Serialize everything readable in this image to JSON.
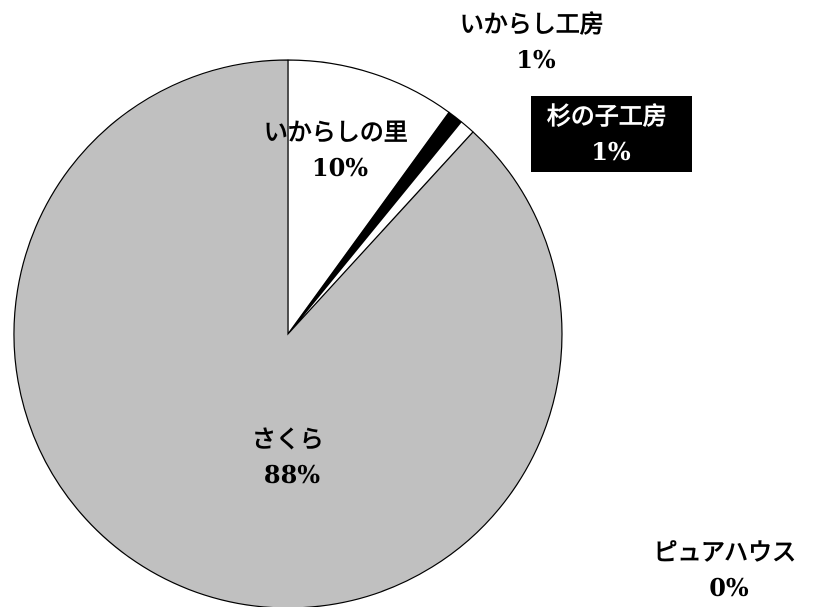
{
  "chart_data": {
    "type": "pie",
    "slices": [
      {
        "name": "いからしの里",
        "percent_label": "10%",
        "value": 10,
        "color": "#ffffff"
      },
      {
        "name": "杉の子工房",
        "percent_label": "1%",
        "value": 0.9,
        "color": "#000000"
      },
      {
        "name": "いからし工房",
        "percent_label": "1%",
        "value": 0.9,
        "color": "#ffffff"
      },
      {
        "name": "さくら",
        "percent_label": "88%",
        "value": 88.2,
        "color": "#c0c0c0"
      },
      {
        "name": "ピュアハウス",
        "percent_label": "0%",
        "value": 0.0,
        "color": "#ffffff"
      }
    ]
  }
}
